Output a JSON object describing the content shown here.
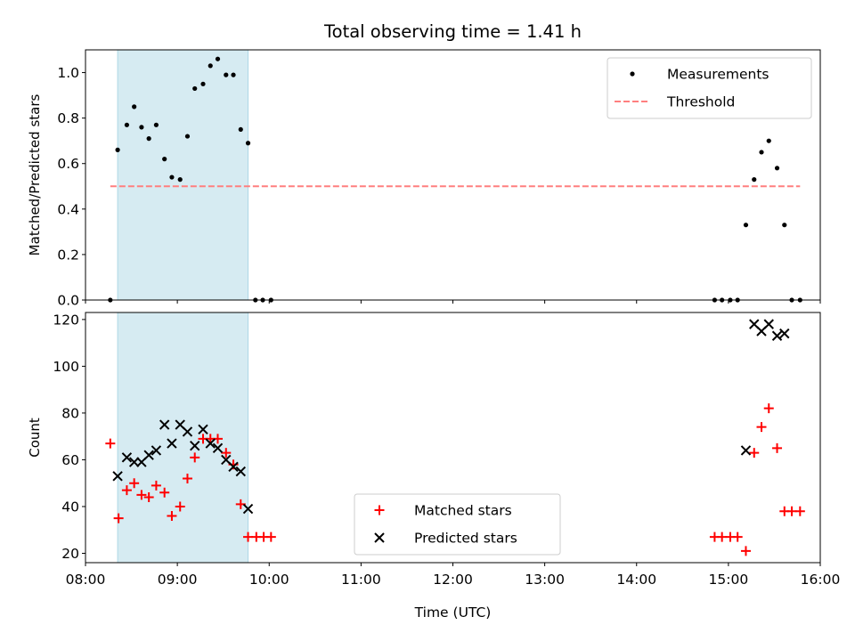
{
  "chart_data": [
    {
      "type": "scatter",
      "title": "Total observing time = 1.41 h",
      "xlabel": "",
      "ylabel": "Matched/Predicted stars",
      "xlim": [
        "08:00",
        "16:00"
      ],
      "ylim": [
        0.0,
        1.1
      ],
      "yticks": [
        0.0,
        0.2,
        0.4,
        0.6,
        0.8,
        1.0
      ],
      "ytick_labels": [
        "0.0",
        "0.2",
        "0.4",
        "0.6",
        "0.8",
        "1.0"
      ],
      "x_unit": "hours UTC",
      "shaded_band": {
        "x": [
          8.35,
          9.77
        ],
        "color": "#add8e6"
      },
      "legend": {
        "placement": "upper right",
        "entries": [
          "Measurements",
          "Threshold"
        ]
      },
      "series": [
        {
          "name": "Measurements",
          "marker": "dot",
          "color": "#000000",
          "points": [
            [
              8.27,
              0.0
            ],
            [
              8.35,
              0.66
            ],
            [
              8.45,
              0.77
            ],
            [
              8.53,
              0.85
            ],
            [
              8.61,
              0.76
            ],
            [
              8.69,
              0.71
            ],
            [
              8.77,
              0.77
            ],
            [
              8.86,
              0.62
            ],
            [
              8.94,
              0.54
            ],
            [
              9.03,
              0.53
            ],
            [
              9.11,
              0.72
            ],
            [
              9.19,
              0.93
            ],
            [
              9.28,
              0.95
            ],
            [
              9.36,
              1.03
            ],
            [
              9.44,
              1.06
            ],
            [
              9.53,
              0.99
            ],
            [
              9.61,
              0.99
            ],
            [
              9.69,
              0.75
            ],
            [
              9.77,
              0.69
            ],
            [
              9.85,
              0.0
            ],
            [
              9.93,
              0.0
            ],
            [
              10.02,
              0.0
            ],
            [
              14.85,
              0.0
            ],
            [
              14.93,
              0.0
            ],
            [
              15.02,
              0.0
            ],
            [
              15.1,
              0.0
            ],
            [
              15.19,
              0.33
            ],
            [
              15.28,
              0.53
            ],
            [
              15.36,
              0.65
            ],
            [
              15.44,
              0.7
            ],
            [
              15.53,
              0.58
            ],
            [
              15.61,
              0.33
            ],
            [
              15.69,
              0.0
            ],
            [
              15.78,
              0.0
            ]
          ]
        },
        {
          "name": "Threshold",
          "style": "dashed",
          "color": "#ff7f7f",
          "points": [
            [
              8.27,
              0.5
            ],
            [
              15.78,
              0.5
            ]
          ]
        }
      ]
    },
    {
      "type": "scatter",
      "title": "",
      "xlabel": "Time (UTC)",
      "ylabel": "Count",
      "xlim": [
        "08:00",
        "16:00"
      ],
      "ylim": [
        16,
        123
      ],
      "yticks": [
        20,
        40,
        60,
        80,
        100,
        120
      ],
      "ytick_labels": [
        "20",
        "40",
        "60",
        "80",
        "100",
        "120"
      ],
      "xticks": [
        8,
        9,
        10,
        11,
        12,
        13,
        14,
        15,
        16
      ],
      "xtick_labels": [
        "08:00",
        "09:00",
        "10:00",
        "11:00",
        "12:00",
        "13:00",
        "14:00",
        "15:00",
        "16:00"
      ],
      "x_unit": "hours UTC",
      "shaded_band": {
        "x": [
          8.35,
          9.77
        ],
        "color": "#add8e6"
      },
      "legend": {
        "placement": "lower center",
        "entries": [
          "Matched stars",
          "Predicted stars"
        ]
      },
      "series": [
        {
          "name": "Matched stars",
          "marker": "plus",
          "color": "#ff0000",
          "points": [
            [
              8.27,
              67
            ],
            [
              8.36,
              35
            ],
            [
              8.45,
              47
            ],
            [
              8.53,
              50
            ],
            [
              8.61,
              45
            ],
            [
              8.69,
              44
            ],
            [
              8.77,
              49
            ],
            [
              8.86,
              46
            ],
            [
              8.94,
              36
            ],
            [
              9.03,
              40
            ],
            [
              9.11,
              52
            ],
            [
              9.19,
              61
            ],
            [
              9.28,
              69
            ],
            [
              9.36,
              69
            ],
            [
              9.44,
              69
            ],
            [
              9.53,
              63
            ],
            [
              9.61,
              58
            ],
            [
              9.69,
              41
            ],
            [
              9.77,
              27
            ],
            [
              9.86,
              27
            ],
            [
              9.94,
              27
            ],
            [
              10.02,
              27
            ],
            [
              14.85,
              27
            ],
            [
              14.93,
              27
            ],
            [
              15.02,
              27
            ],
            [
              15.1,
              27
            ],
            [
              15.19,
              21
            ],
            [
              15.28,
              63
            ],
            [
              15.36,
              74
            ],
            [
              15.44,
              82
            ],
            [
              15.53,
              65
            ],
            [
              15.61,
              38
            ],
            [
              15.69,
              38
            ],
            [
              15.78,
              38
            ]
          ]
        },
        {
          "name": "Predicted stars",
          "marker": "x",
          "color": "#000000",
          "points": [
            [
              8.35,
              53
            ],
            [
              8.45,
              61
            ],
            [
              8.53,
              59
            ],
            [
              8.61,
              59
            ],
            [
              8.69,
              62
            ],
            [
              8.77,
              64
            ],
            [
              8.86,
              75
            ],
            [
              8.94,
              67
            ],
            [
              9.03,
              75
            ],
            [
              9.11,
              72
            ],
            [
              9.19,
              66
            ],
            [
              9.28,
              73
            ],
            [
              9.36,
              67
            ],
            [
              9.44,
              65
            ],
            [
              9.53,
              60
            ],
            [
              9.61,
              57
            ],
            [
              9.69,
              55
            ],
            [
              9.77,
              39
            ],
            [
              15.19,
              64
            ],
            [
              15.28,
              118
            ],
            [
              15.36,
              115
            ],
            [
              15.44,
              118
            ],
            [
              15.53,
              113
            ],
            [
              15.61,
              114
            ]
          ]
        }
      ]
    }
  ]
}
